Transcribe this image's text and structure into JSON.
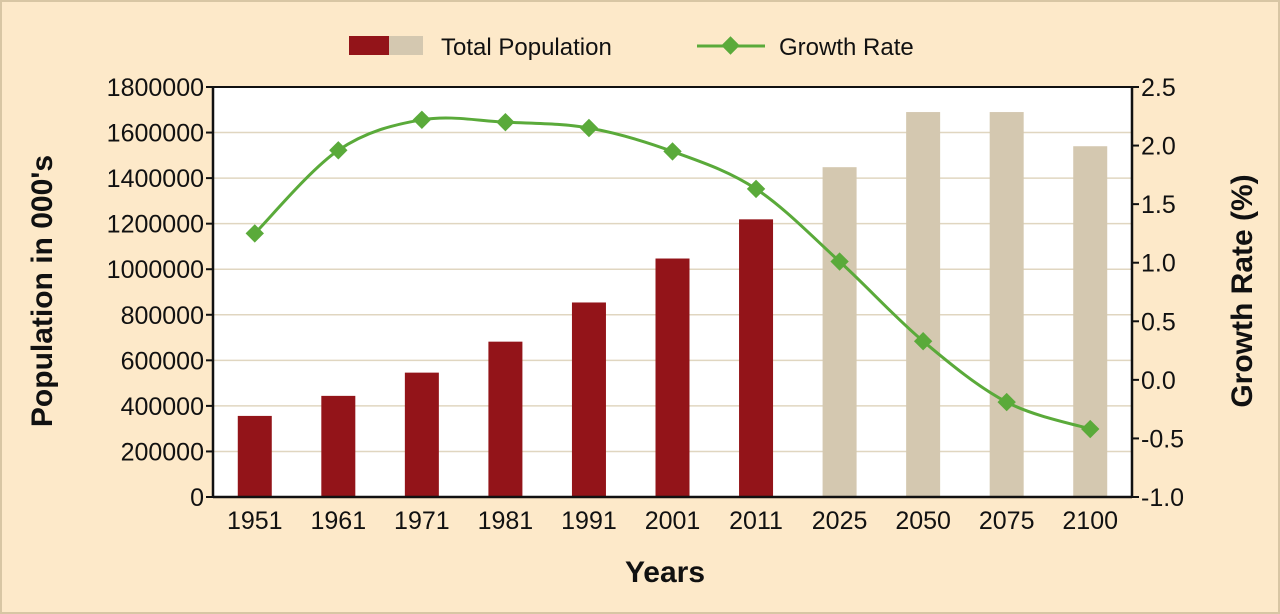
{
  "chart_data": {
    "type": "bar+line",
    "categories": [
      "1951",
      "1961",
      "1971",
      "1981",
      "1991",
      "2001",
      "2011",
      "2025",
      "2050",
      "2075",
      "2100"
    ],
    "series": [
      {
        "name": "Total Population",
        "type": "bar",
        "axis": "left",
        "values": [
          356000,
          444000,
          546000,
          682000,
          854000,
          1047000,
          1219000,
          1448000,
          1690000,
          1690000,
          1540000
        ],
        "projected_from_index": 7
      },
      {
        "name": "Growth Rate",
        "type": "line",
        "axis": "right",
        "values": [
          1.25,
          1.96,
          2.22,
          2.2,
          2.15,
          1.95,
          1.63,
          1.01,
          0.33,
          -0.19,
          -0.42
        ]
      }
    ],
    "xlabel": "Years",
    "ylabel": "Population in 000's",
    "y2label": "Growth Rate (%)",
    "ylim": [
      0,
      1800000
    ],
    "y2lim": [
      -1.0,
      2.5
    ],
    "yticks": [
      "0",
      "200000",
      "400000",
      "600000",
      "800000",
      "1000000",
      "1200000",
      "1400000",
      "1600000",
      "1800000"
    ],
    "y2ticks": [
      "-1.0",
      "-0.5",
      "0.0",
      "0.5",
      "1.0",
      "1.5",
      "2.0",
      "2.5"
    ],
    "grid": true,
    "legend_position": "top-center",
    "legend": [
      "Total Population",
      "Growth Rate"
    ],
    "colors": {
      "bar_actual": "#931419",
      "bar_projected": "#d4c8b0",
      "line": "#5aaa3a",
      "grid": "#e0d6c0",
      "background": "#fde9c9"
    }
  }
}
